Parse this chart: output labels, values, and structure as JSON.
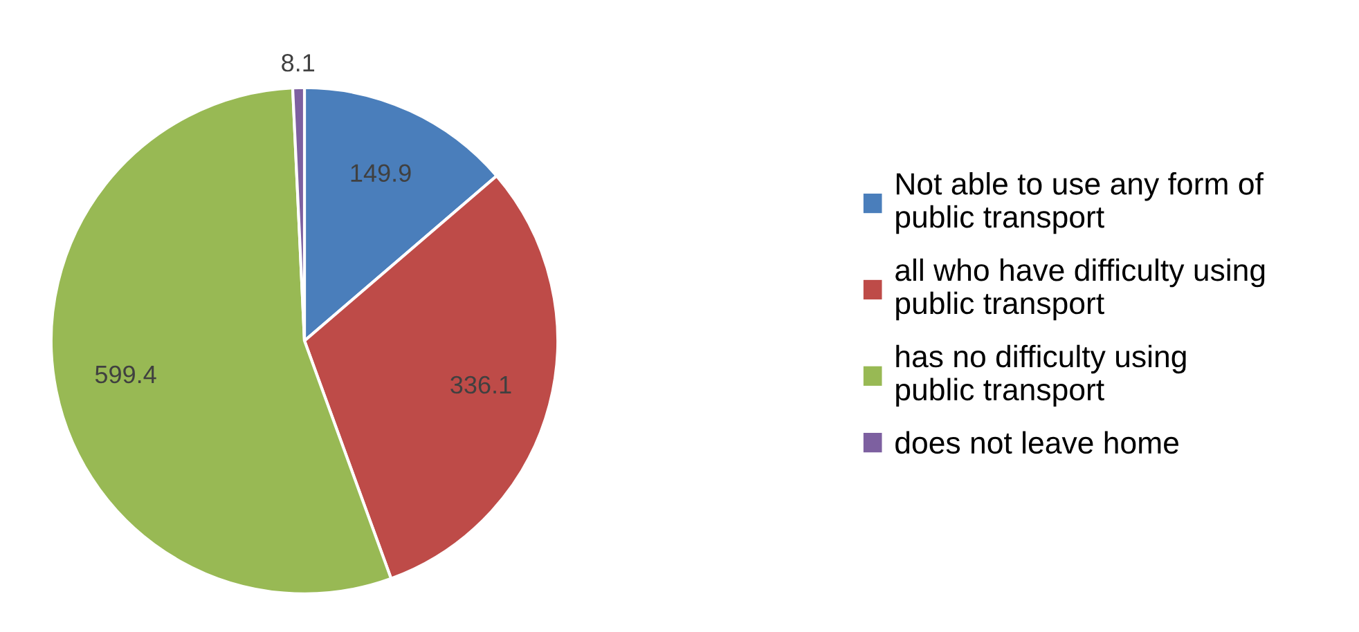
{
  "chart_data": {
    "type": "pie",
    "categories": [
      "Not able to use any form of public transport",
      "all who have difficulty using public transport",
      "has no difficulty using public transport",
      "does not leave home"
    ],
    "values": [
      149.9,
      336.1,
      599.4,
      8.1
    ],
    "colors": [
      "#4a7ebb",
      "#be4b48",
      "#98b954",
      "#7d60a0"
    ],
    "data_labels": true,
    "legend": "right"
  }
}
